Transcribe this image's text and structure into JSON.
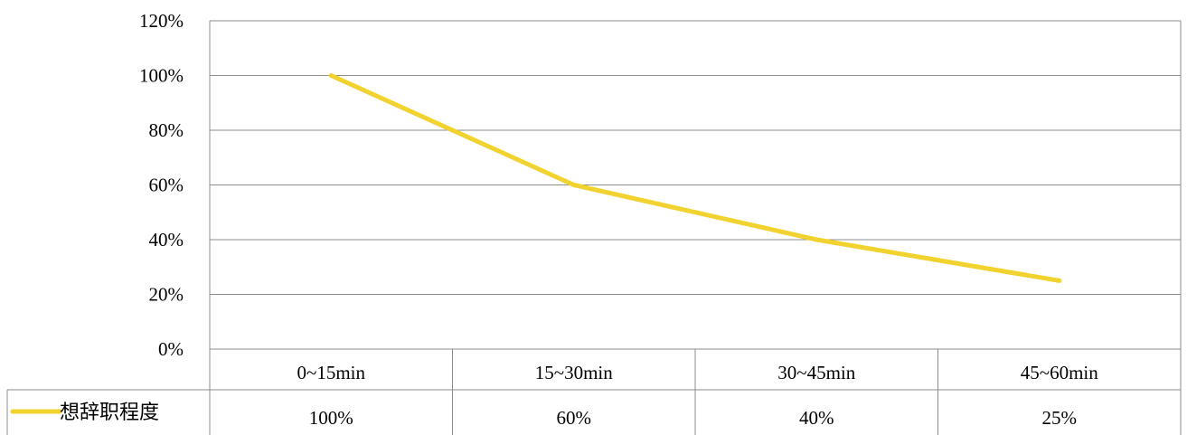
{
  "chart_data": {
    "type": "line",
    "categories": [
      "0~15min",
      "15~30min",
      "30~45min",
      "45~60min"
    ],
    "y_ticks": [
      "0%",
      "20%",
      "40%",
      "60%",
      "80%",
      "100%",
      "120%"
    ],
    "ylim": [
      0,
      120
    ],
    "grid": true,
    "legend_placement": "data-table-left",
    "series": [
      {
        "name": "想辞职程度",
        "values": [
          100,
          60,
          40,
          25
        ],
        "labels": [
          "100%",
          "60%",
          "40%",
          "25%"
        ],
        "color": "#F2D22E"
      }
    ]
  }
}
